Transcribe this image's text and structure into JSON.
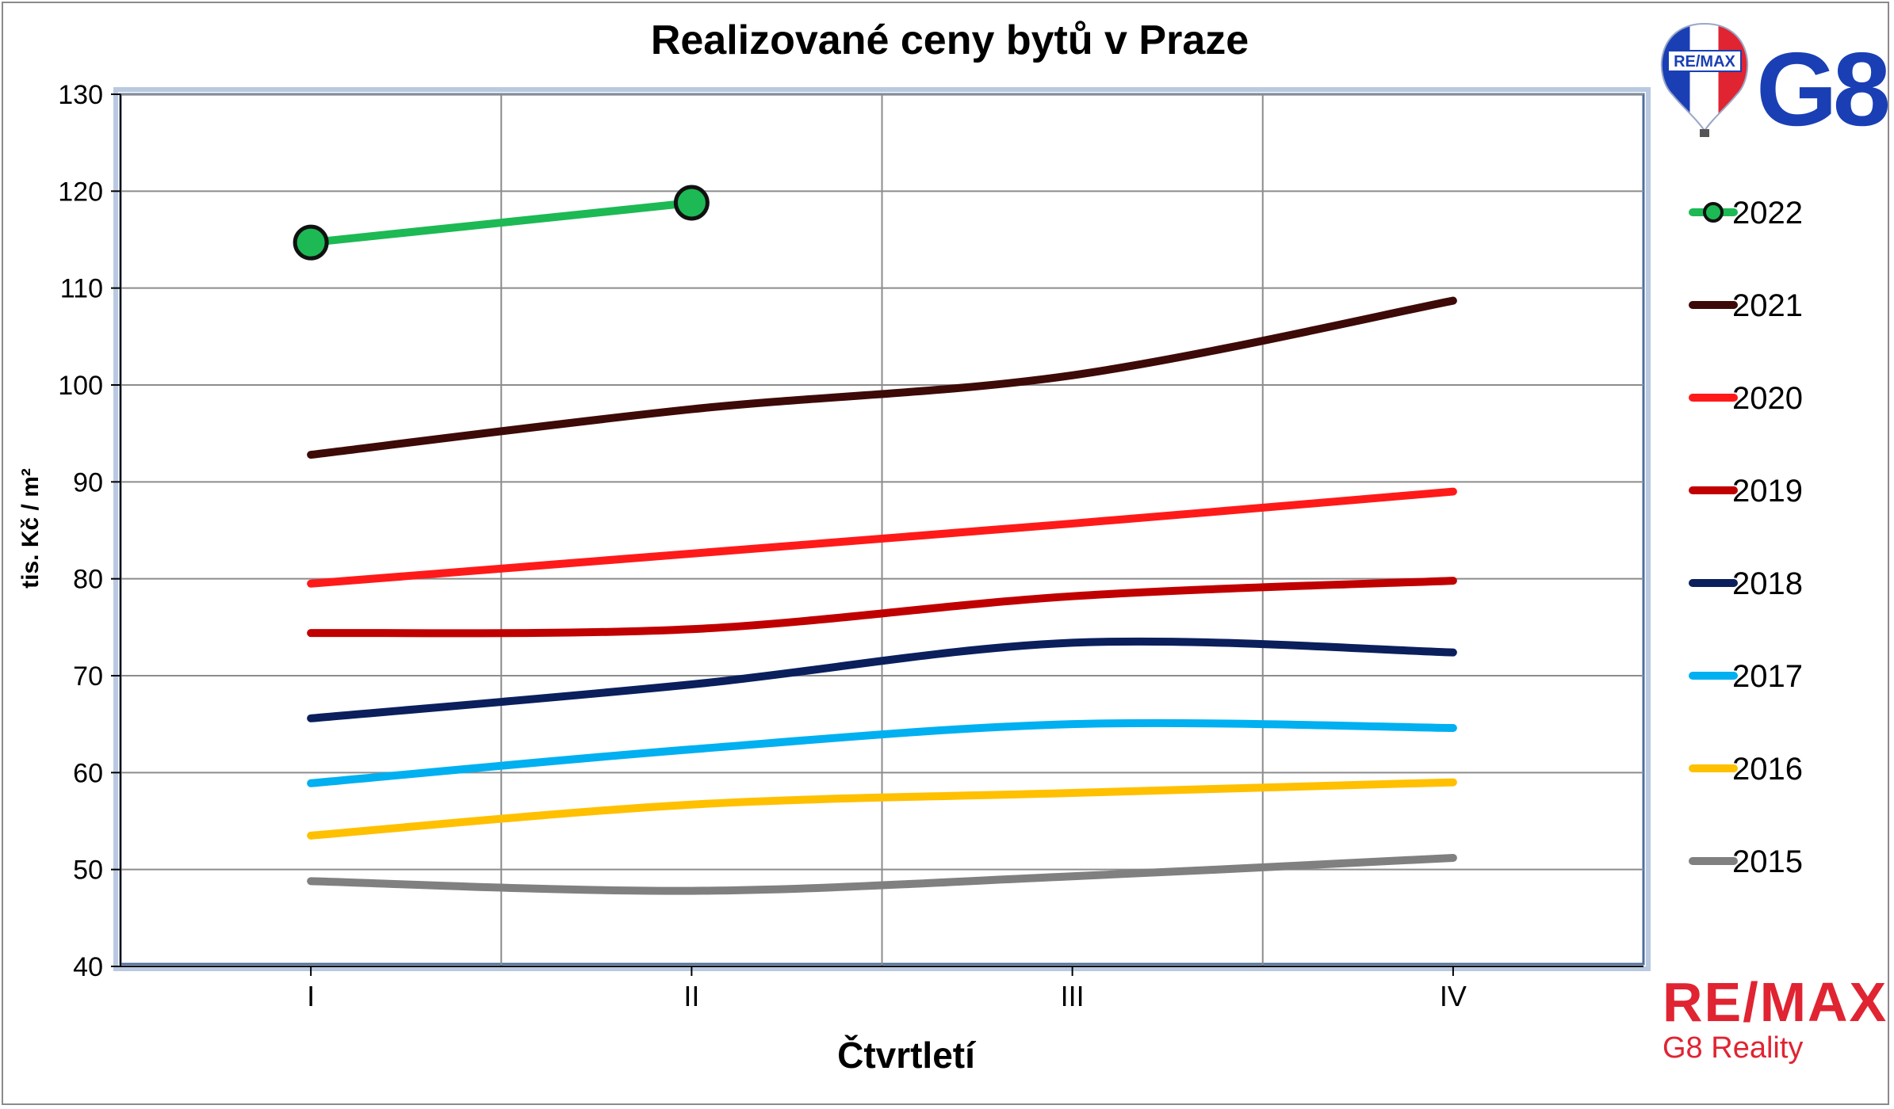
{
  "chart_data": {
    "type": "line",
    "title": "Realizované ceny bytů v Praze",
    "xlabel": "Čtvrtletí",
    "ylabel": "tis. Kč / m²",
    "categories": [
      "I",
      "II",
      "III",
      "IV"
    ],
    "ylim": [
      40,
      130
    ],
    "yticks": [
      40,
      50,
      60,
      70,
      80,
      90,
      100,
      110,
      120,
      130
    ],
    "grid": true,
    "legend_position": "right",
    "series": [
      {
        "name": "2022",
        "values": [
          114.7,
          118.8,
          null,
          null
        ],
        "color": "#1db954",
        "markers": true
      },
      {
        "name": "2021",
        "values": [
          92.8,
          97.5,
          101.0,
          108.7
        ],
        "color": "#3d0a08",
        "markers": false
      },
      {
        "name": "2020",
        "values": [
          79.5,
          82.6,
          85.7,
          89.0
        ],
        "color": "#ff1a1a",
        "markers": false
      },
      {
        "name": "2019",
        "values": [
          74.4,
          74.8,
          78.2,
          79.8
        ],
        "color": "#c00000",
        "markers": false
      },
      {
        "name": "2018",
        "values": [
          65.6,
          69.1,
          73.4,
          72.4
        ],
        "color": "#0a1f5c",
        "markers": false
      },
      {
        "name": "2017",
        "values": [
          58.9,
          62.4,
          65.0,
          64.6
        ],
        "color": "#00b0f0",
        "markers": false
      },
      {
        "name": "2016",
        "values": [
          53.5,
          56.7,
          57.9,
          59.0
        ],
        "color": "#ffc000",
        "markers": false
      },
      {
        "name": "2015",
        "values": [
          48.8,
          47.8,
          49.3,
          51.2
        ],
        "color": "#808080",
        "markers": false
      }
    ]
  },
  "branding": {
    "top_logo_text": "G8",
    "balloon_text": "RE/MAX",
    "bottom_logo_text": "RE/MAX",
    "bottom_logo_subtitle": "G8 Reality",
    "brand_red": "#e02432",
    "brand_blue": "#1a3fb5"
  }
}
